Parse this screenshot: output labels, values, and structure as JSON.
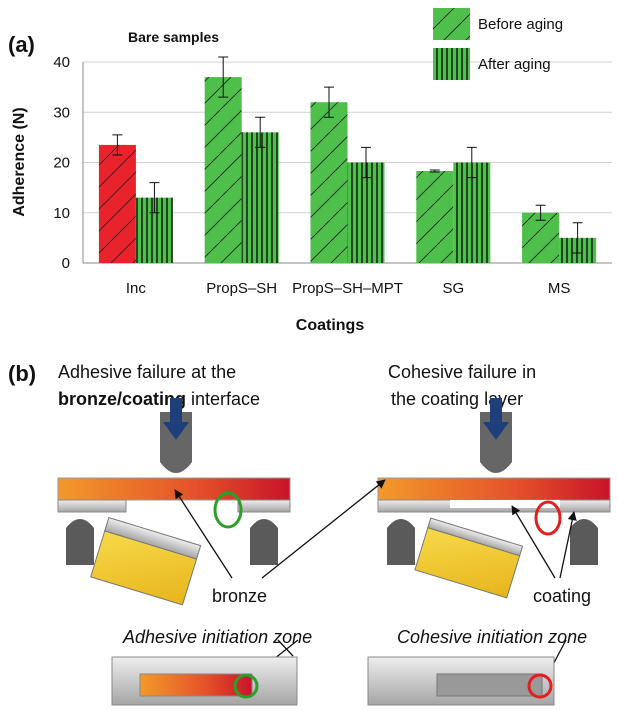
{
  "chart_data": {
    "type": "bar",
    "title": "Bare samples",
    "panel_label": "(a)",
    "x_label": "Coatings",
    "y_label": "Adherence (N)",
    "categories": [
      "Inc",
      "PropS–SH",
      "PropS–SH–MPT",
      "SG",
      "MS"
    ],
    "series": [
      {
        "name": "Before aging",
        "color": "#4dbf4a",
        "colors": [
          "#e8232b",
          "#4dbf4a",
          "#4dbf4a",
          "#4dbf4a",
          "#4dbf4a"
        ],
        "pattern": "diagonal",
        "values": [
          23.5,
          37,
          32,
          18.3,
          10
        ],
        "errors": [
          2,
          4,
          3,
          0.2,
          1.5
        ]
      },
      {
        "name": "After aging",
        "color": "#4dbf4a",
        "colors": [
          "#4dbf4a",
          "#4dbf4a",
          "#4dbf4a",
          "#4dbf4a",
          "#4dbf4a"
        ],
        "pattern": "vertical",
        "values": [
          13,
          26,
          20,
          20,
          5
        ],
        "errors": [
          3,
          3,
          3,
          3,
          3
        ]
      }
    ],
    "ylim": [
      0,
      40
    ],
    "yticks": [
      0,
      10,
      20,
      30,
      40
    ],
    "grid": true,
    "legend": "top-right"
  },
  "diagram": {
    "panel_label": "(b)",
    "adhesive": {
      "line1": "Adhesive failure at the",
      "line2_bold": "bronze/coating",
      "line2_rest": " interface",
      "zone": "Adhesive initiation zone"
    },
    "cohesive": {
      "line1": "Cohesive failure in",
      "line2": "the coating layer",
      "zone": "Cohesive initiation zone"
    },
    "labels": {
      "bronze": "bronze",
      "coating": "coating"
    }
  }
}
